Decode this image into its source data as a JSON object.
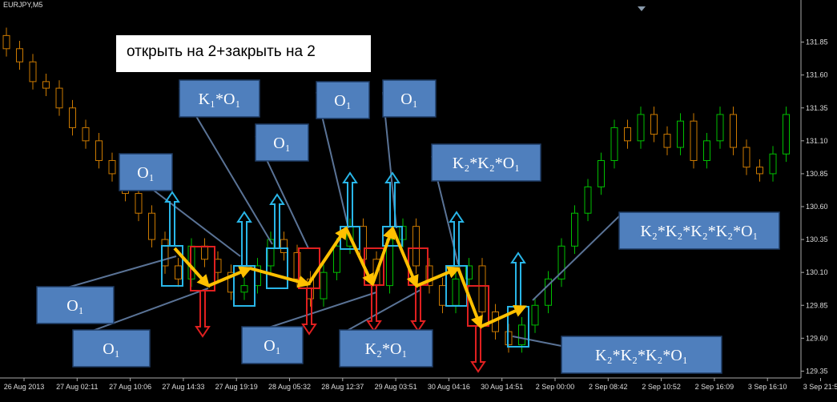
{
  "chart_data": {
    "type": "candlestick",
    "title": "EURJPY,M5",
    "note": "открыть на 2+закрыть на 2",
    "x_labels": [
      "26 Aug 2013",
      "27 Aug 02:11",
      "27 Aug 10:06",
      "27 Aug 14:33",
      "27 Aug 19:19",
      "28 Aug 05:32",
      "28 Aug 12:37",
      "29 Aug 03:51",
      "30 Aug 04:16",
      "30 Aug 14:51",
      "2 Sep 00:00",
      "2 Sep 08:42",
      "2 Sep 10:52",
      "2 Sep 16:09",
      "3 Sep 16:10",
      "3 Sep 21:5"
    ],
    "ylim": [
      129.31,
      132.17
    ],
    "yticks": [
      131.85,
      {
        "value": 131.6,
        "label": "131.60"
      },
      131.35,
      {
        "value": 131.1,
        "label": "131.10"
      },
      130.85,
      {
        "value": 130.6,
        "label": "130.60"
      },
      130.35,
      {
        "value": 130.1,
        "label": "130.10"
      },
      129.85,
      {
        "value": 129.6,
        "label": "129.60"
      },
      129.35
    ],
    "up_color": "#00c000",
    "down_color": "#cc7a00",
    "open": [
      131.9,
      131.8,
      131.7,
      131.55,
      131.5,
      131.35,
      131.2,
      131.1,
      130.95,
      130.85,
      130.7,
      130.55,
      130.35,
      130.15,
      130.05,
      130.3,
      130.2,
      130.1,
      129.95,
      130.0,
      130.15,
      130.35,
      130.25,
      130.05,
      129.9,
      130.1,
      130.3,
      130.45,
      130.2,
      130.0,
      130.35,
      130.45,
      130.15,
      130.0,
      129.85,
      130.05,
      130.15,
      129.8,
      129.65,
      129.55,
      129.7,
      129.85,
      130.05,
      130.3,
      130.55,
      130.75,
      130.95,
      131.2,
      131.1,
      131.3,
      131.15,
      131.05,
      131.25,
      130.95,
      131.1,
      131.3,
      131.05,
      130.9,
      130.85,
      131.0
    ],
    "high": [
      131.96,
      131.86,
      131.76,
      131.61,
      131.56,
      131.41,
      131.26,
      131.16,
      131.01,
      130.91,
      130.76,
      130.61,
      130.41,
      130.21,
      130.36,
      130.36,
      130.26,
      130.16,
      130.06,
      130.21,
      130.41,
      130.41,
      130.31,
      130.11,
      130.16,
      130.36,
      130.51,
      130.51,
      130.26,
      130.41,
      130.51,
      130.51,
      130.21,
      130.06,
      130.11,
      130.21,
      130.21,
      129.86,
      129.71,
      129.76,
      129.91,
      130.11,
      130.36,
      130.61,
      130.81,
      131.01,
      131.26,
      131.26,
      131.36,
      131.36,
      131.21,
      131.31,
      131.31,
      131.16,
      131.36,
      131.36,
      131.11,
      130.96,
      131.06,
      131.36
    ],
    "low": [
      131.74,
      131.64,
      131.49,
      131.44,
      131.29,
      131.14,
      131.04,
      130.89,
      130.79,
      130.64,
      130.49,
      130.29,
      130.09,
      129.99,
      129.99,
      130.14,
      130.04,
      129.89,
      129.89,
      129.94,
      130.09,
      130.19,
      129.99,
      129.84,
      129.84,
      130.04,
      130.24,
      130.14,
      129.94,
      129.94,
      130.29,
      130.09,
      129.94,
      129.79,
      129.79,
      129.99,
      129.74,
      129.59,
      129.49,
      129.49,
      129.64,
      129.79,
      129.99,
      130.24,
      130.49,
      130.69,
      130.89,
      131.04,
      131.04,
      131.09,
      130.99,
      130.99,
      130.89,
      130.89,
      131.04,
      130.99,
      130.84,
      130.79,
      130.79,
      130.94
    ],
    "close": [
      131.8,
      131.7,
      131.55,
      131.5,
      131.35,
      131.2,
      131.1,
      130.95,
      130.85,
      130.7,
      130.55,
      130.35,
      130.15,
      130.05,
      130.3,
      130.2,
      130.1,
      129.95,
      130.0,
      130.15,
      130.35,
      130.25,
      130.05,
      129.9,
      130.1,
      130.3,
      130.45,
      130.2,
      130.0,
      130.35,
      130.45,
      130.15,
      130.0,
      129.85,
      130.05,
      130.15,
      129.8,
      129.65,
      129.55,
      129.7,
      129.85,
      130.05,
      130.3,
      130.55,
      130.75,
      130.95,
      131.2,
      131.1,
      131.3,
      131.15,
      131.05,
      131.25,
      130.95,
      131.1,
      131.3,
      131.05,
      130.9,
      130.85,
      131.0,
      131.3
    ],
    "annotations": [
      "K₁*O₁",
      "O₁",
      "O₁",
      "O₁",
      "O₁",
      "K₂*K₂*O₁",
      "K₂*K₂*K₂*K₂*O₁",
      "O₁",
      "O₁",
      "O₁",
      "K₂*O₁",
      "K₂*K₂*K₂*O₁"
    ]
  }
}
